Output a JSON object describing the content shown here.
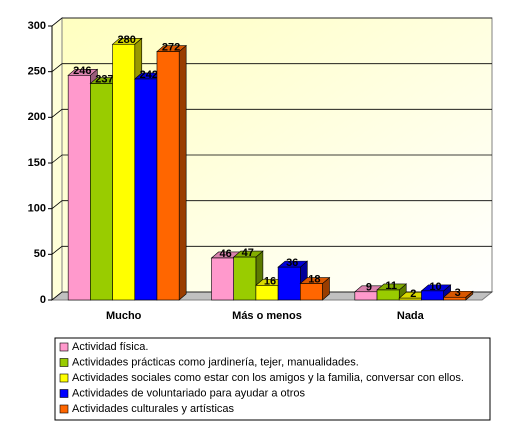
{
  "chart_data": {
    "type": "bar3d",
    "categories": [
      "Mucho",
      "Más o menos",
      "Nada"
    ],
    "series": [
      {
        "name": "Actividad física.",
        "color": "#ff99cc",
        "values": [
          246,
          46,
          9
        ]
      },
      {
        "name": "Actividades prácticas como jardinería, tejer, manualidades.",
        "color": "#99cc00",
        "values": [
          237,
          47,
          11
        ]
      },
      {
        "name": "Actividades sociales como estar con los amigos y la familia, conversar con ellos.",
        "color": "#ffff00",
        "values": [
          280,
          16,
          2
        ]
      },
      {
        "name": "Actividades de voluntariado para ayudar a otros",
        "color": "#0000ff",
        "values": [
          242,
          36,
          10
        ]
      },
      {
        "name": "Actividades culturales y artísticas",
        "color": "#ff6600",
        "values": [
          272,
          18,
          3
        ]
      }
    ],
    "ylim": [
      0,
      300
    ],
    "yticks": [
      0,
      50,
      100,
      150,
      200,
      250,
      300
    ],
    "grid": true,
    "legend": "bottom"
  }
}
